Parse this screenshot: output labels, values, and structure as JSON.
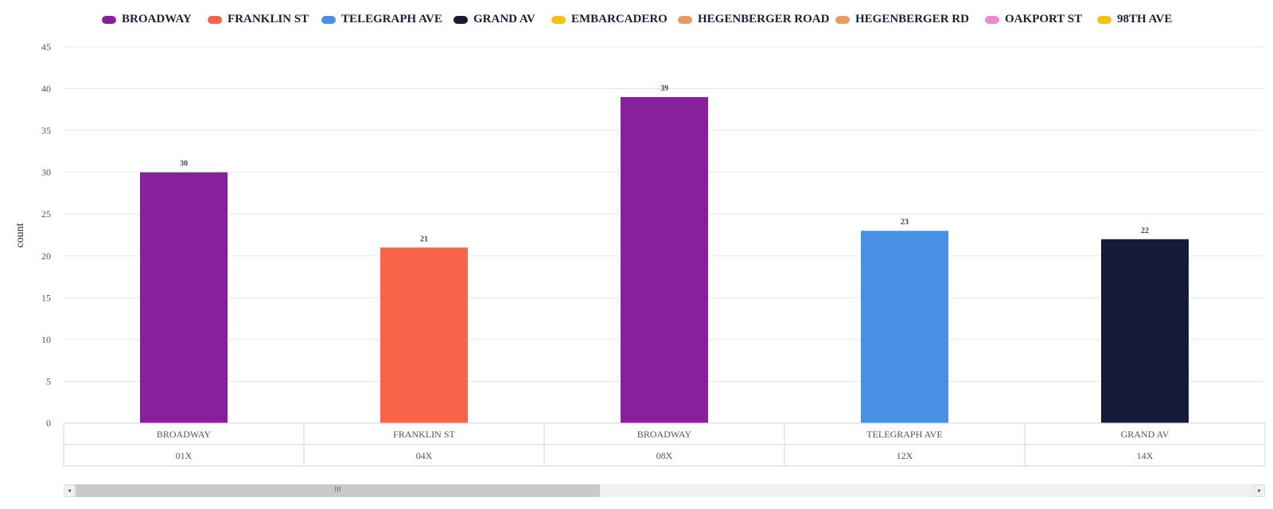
{
  "legend": [
    {
      "label": "BROADWAY",
      "color": "#87209a"
    },
    {
      "label": "FRANKLIN ST",
      "color": "#f6654a"
    },
    {
      "label": "TELEGRAPH AVE",
      "color": "#4790e6"
    },
    {
      "label": "GRAND AV",
      "color": "#151b38"
    },
    {
      "label": "EMBARCADERO",
      "color": "#f5c010"
    },
    {
      "label": "HEGENBERGER ROAD",
      "color": "#ec9a5e"
    },
    {
      "label": "HEGENBERGER RD",
      "color": "#ec9a5e"
    },
    {
      "label": "OAKPORT ST",
      "color": "#ee88d6"
    },
    {
      "label": "98TH AVE",
      "color": "#f5c010"
    }
  ],
  "chart_data": {
    "type": "bar",
    "ylabel": "count",
    "ylim": [
      0,
      45
    ],
    "yticks": [
      0,
      5,
      10,
      15,
      20,
      25,
      30,
      35,
      40,
      45
    ],
    "grid": true,
    "legend_position": "top",
    "categories": [
      {
        "street": "BROADWAY",
        "route": "01X",
        "value": 30,
        "color": "#87209a"
      },
      {
        "street": "FRANKLIN ST",
        "route": "04X",
        "value": 21,
        "color": "#f6654a"
      },
      {
        "street": "BROADWAY",
        "route": "08X",
        "value": 39,
        "color": "#87209a"
      },
      {
        "street": "TELEGRAPH AVE",
        "route": "12X",
        "value": 23,
        "color": "#4790e6"
      },
      {
        "street": "GRAND AV",
        "route": "14X",
        "value": 22,
        "color": "#151b38"
      }
    ]
  },
  "scrollbar": {
    "left_arrow": "◂",
    "right_arrow": "▸",
    "grip": "III"
  }
}
